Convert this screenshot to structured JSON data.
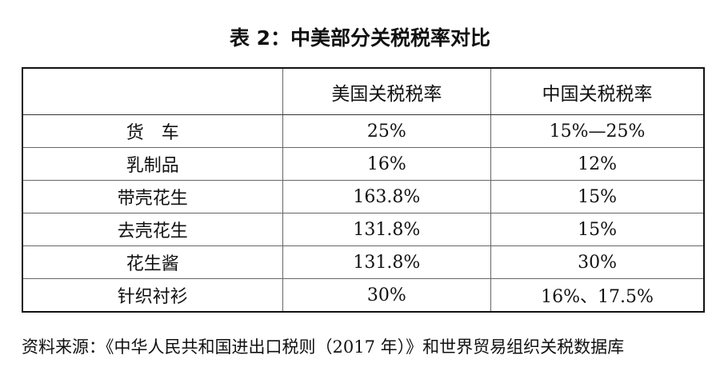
{
  "title": "表 2：中美部分关税税率对比",
  "table": {
    "headers": [
      "",
      "美国关税税率",
      "中国关税税率"
    ],
    "rows": [
      [
        "货　车",
        "25%",
        "15%—25%"
      ],
      [
        "乳制品",
        "16%",
        "12%"
      ],
      [
        "带壳花生",
        "163.8%",
        "15%"
      ],
      [
        "去壳花生",
        "131.8%",
        "15%"
      ],
      [
        "花生酱",
        "131.8%",
        "30%"
      ],
      [
        "针织衬衫",
        "30%",
        "16%、17.5%"
      ]
    ]
  },
  "source_note": "资料来源：《中华人民共和国进出口税则（2017 年）》和世界贸易组织关税数据库"
}
